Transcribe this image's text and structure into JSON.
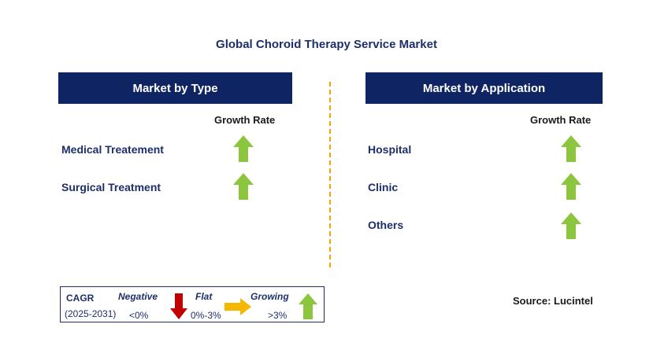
{
  "title": "Global Choroid Therapy Service Market",
  "left_panel": {
    "header": "Market by Type",
    "growth_label": "Growth Rate",
    "items": [
      {
        "label": "Medical Treatement",
        "trend": "growing"
      },
      {
        "label": "Surgical Treatment",
        "trend": "growing"
      }
    ]
  },
  "right_panel": {
    "header": "Market by Application",
    "growth_label": "Growth Rate",
    "items": [
      {
        "label": "Hospital",
        "trend": "growing"
      },
      {
        "label": "Clinic",
        "trend": "growing"
      },
      {
        "label": "Others",
        "trend": "growing"
      }
    ]
  },
  "legend": {
    "cagr_label": "CAGR",
    "period": "(2025-2031)",
    "negative_label": "Negative",
    "negative_range": "<0%",
    "flat_label": "Flat",
    "flat_range": "0%-3%",
    "growing_label": "Growing",
    "growing_range": ">3%"
  },
  "source": "Source: Lucintel",
  "colors": {
    "header_bg": "#0f2463",
    "arrow_up": "#8cc63f",
    "arrow_down": "#c00000",
    "arrow_flat": "#f5b800",
    "divider": "#f0a500"
  }
}
